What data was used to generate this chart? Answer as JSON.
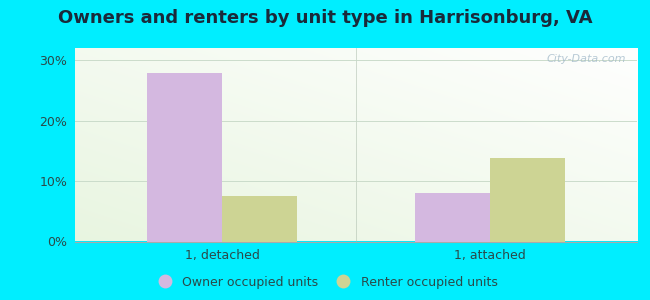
{
  "title": "Owners and renters by unit type in Harrisonburg, VA",
  "groups": [
    "1, detached",
    "1, attached"
  ],
  "owner_values": [
    27.8,
    8.0
  ],
  "renter_values": [
    7.5,
    13.8
  ],
  "owner_color": "#d4b8e0",
  "renter_color": "#cdd494",
  "ylim": [
    0,
    0.32
  ],
  "yticks": [
    0.0,
    0.1,
    0.2,
    0.3
  ],
  "yticklabels": [
    "0%",
    "10%",
    "20%",
    "30%"
  ],
  "legend_owner": "Owner occupied units",
  "legend_renter": "Renter occupied units",
  "bar_width": 0.28,
  "background_color": "#00eeff",
  "plot_bg_color_topleft": "#e8f5e0",
  "plot_bg_color_bottomright": "#f8fff8",
  "watermark": "City-Data.com",
  "title_fontsize": 13,
  "tick_fontsize": 9,
  "legend_fontsize": 9,
  "title_color": "#1a2a3a",
  "tick_color": "#2a4a4a"
}
